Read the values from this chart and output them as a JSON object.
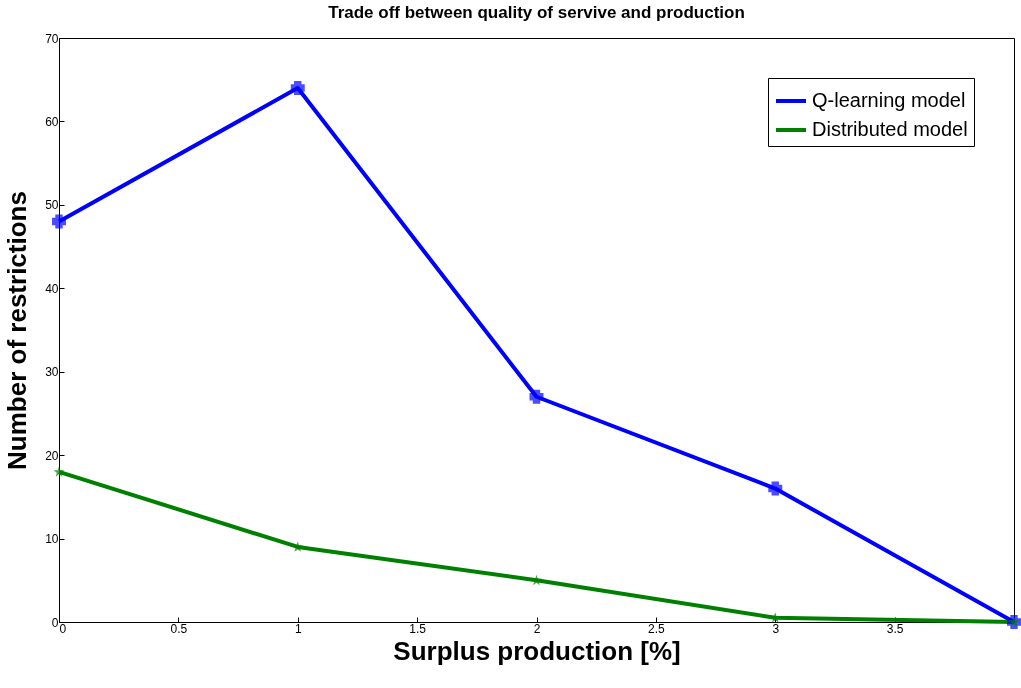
{
  "chart_data": {
    "type": "line",
    "title": "Trade off between quality of servive and production",
    "xlabel": "Surplus production [%]",
    "ylabel": "Number of restrictions",
    "x": [
      0,
      1,
      2,
      3,
      4
    ],
    "series": [
      {
        "name": "Q-learning model",
        "color": "#0000ff",
        "values": [
          48,
          64,
          27,
          16,
          0
        ],
        "marker": "cross"
      },
      {
        "name": "Distributed model",
        "color": "#008000",
        "values": [
          18,
          9,
          5,
          0.5,
          0
        ],
        "marker": "star"
      }
    ],
    "xlim": [
      0,
      4
    ],
    "xticks": [
      0,
      0.5,
      1,
      1.5,
      2,
      2.5,
      3,
      3.5
    ],
    "ylim": [
      0,
      70
    ],
    "yticks": [
      0,
      10,
      20,
      30,
      40,
      50,
      60,
      70
    ],
    "legend": "top right",
    "grid": false,
    "line_style": "solid"
  }
}
